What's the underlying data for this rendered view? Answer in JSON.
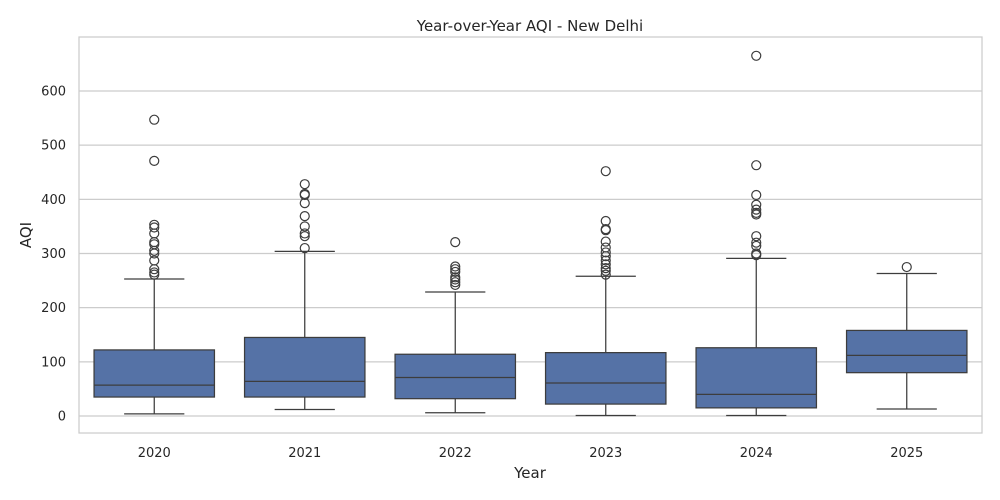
{
  "chart_data": {
    "type": "box",
    "title": "Year-over-Year AQI - New Delhi",
    "xlabel": "Year",
    "ylabel": "AQI",
    "ylim": [
      -30,
      700
    ],
    "yticks": [
      0,
      100,
      200,
      300,
      400,
      500,
      600
    ],
    "grid": "y",
    "box_color": "#5572a6",
    "line_color": "#3d3d3d",
    "categories": [
      "2020",
      "2021",
      "2022",
      "2023",
      "2024",
      "2025"
    ],
    "boxes": [
      {
        "label": "2020",
        "whisker_low": 4,
        "q1": 35,
        "median": 57,
        "q3": 122,
        "whisker_high": 253,
        "outliers": [
          547,
          471,
          353,
          348,
          337,
          321,
          317,
          305,
          300,
          287,
          271,
          265,
          261
        ]
      },
      {
        "label": "2021",
        "whisker_low": 12,
        "q1": 35,
        "median": 64,
        "q3": 145,
        "whisker_high": 304,
        "outliers": [
          428,
          410,
          408,
          393,
          369,
          350,
          337,
          332,
          310
        ]
      },
      {
        "label": "2022",
        "whisker_low": 6,
        "q1": 32,
        "median": 71,
        "q3": 114,
        "whisker_high": 229,
        "outliers": [
          321,
          276,
          271,
          266,
          256,
          252,
          247,
          242
        ]
      },
      {
        "label": "2023",
        "whisker_low": 1,
        "q1": 22,
        "median": 61,
        "q3": 117,
        "whisker_high": 258,
        "outliers": [
          452,
          360,
          345,
          343,
          322,
          311,
          302,
          295,
          287,
          280,
          273,
          268,
          261
        ]
      },
      {
        "label": "2024",
        "whisker_low": 1,
        "q1": 15,
        "median": 40,
        "q3": 126,
        "whisker_high": 291,
        "outliers": [
          665,
          463,
          408,
          390,
          381,
          375,
          372,
          332,
          320,
          314,
          300,
          297
        ]
      },
      {
        "label": "2025",
        "whisker_low": 13,
        "q1": 80,
        "median": 112,
        "q3": 158,
        "whisker_high": 263,
        "outliers": [
          275
        ]
      }
    ]
  }
}
